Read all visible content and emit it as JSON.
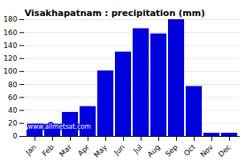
{
  "chart_data": {
    "type": "bar",
    "title": "Visakhapatnam : precipitation (mm)",
    "categories": [
      "Jan",
      "Feb",
      "Mar",
      "Apr",
      "May",
      "Jun",
      "Jul",
      "Aug",
      "Sep",
      "Oct",
      "Nov",
      "Dec"
    ],
    "values": [
      10,
      18,
      37,
      46,
      101,
      130,
      166,
      158,
      180,
      77,
      5,
      5
    ],
    "color": "#0000dd",
    "ylim": [
      0,
      180
    ],
    "yticks": [
      0,
      20,
      40,
      60,
      80,
      100,
      120,
      140,
      160,
      180
    ],
    "grid": true,
    "annotation": "www.allmetsat.com"
  }
}
